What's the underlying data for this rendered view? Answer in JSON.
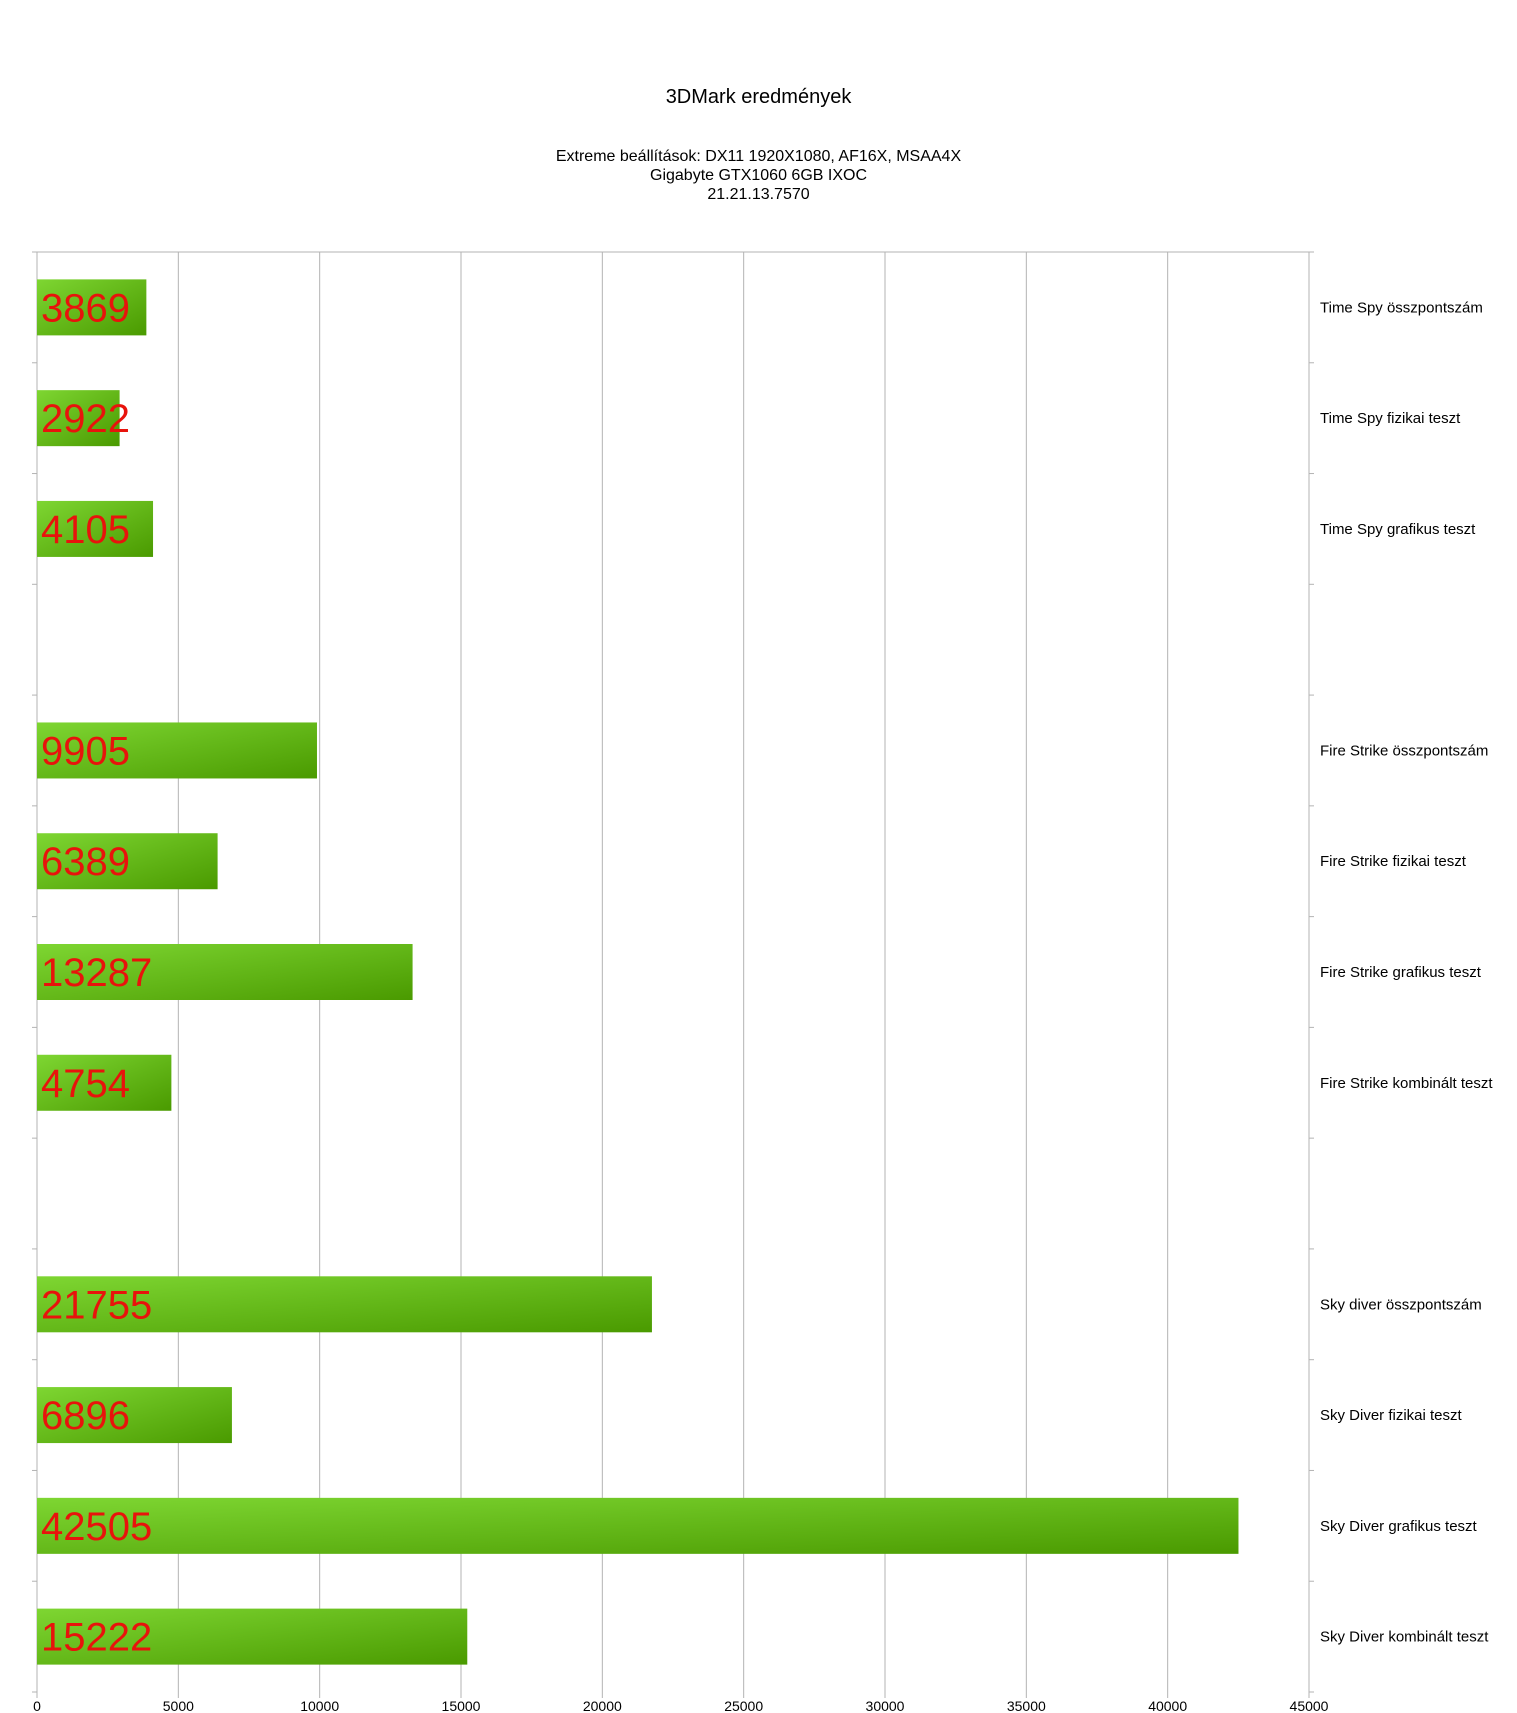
{
  "chart_data": {
    "type": "bar",
    "orientation": "horizontal",
    "title": "3DMark eredmények",
    "subtitle": [
      "Extreme beállítások: DX11 1920X1080, AF16X, MSAA4X",
      "Gigabyte GTX1060 6GB IXOC",
      "21.21.13.7570"
    ],
    "categories": [
      "Time Spy összpontszám",
      "Time Spy fizikai teszt",
      "Time Spy grafikus teszt",
      "",
      "Fire Strike összpontszám",
      "Fire Strike fizikai teszt",
      "Fire Strike grafikus teszt",
      "Fire Strike kombinált teszt",
      "",
      "Sky diver összpontszám",
      "Sky Diver fizikai teszt",
      "Sky Diver grafikus teszt",
      "Sky Diver kombinált teszt"
    ],
    "values": [
      3869,
      2922,
      4105,
      null,
      9905,
      6389,
      13287,
      4754,
      null,
      21755,
      6896,
      42505,
      15222
    ],
    "value_labels": [
      "3869",
      "2922",
      "4105",
      "",
      "9905",
      "6389",
      "13287",
      "4754",
      "",
      "21755",
      "6896",
      "42505",
      "15222"
    ],
    "xlim": [
      0,
      45000
    ],
    "xticks": [
      0,
      5000,
      10000,
      15000,
      20000,
      25000,
      30000,
      35000,
      40000,
      45000
    ],
    "grid": "vertical",
    "category_labels_side": "right",
    "colors": {
      "bar_light": "#7ed632",
      "bar_dark": "#4a9a00",
      "value_label": "#e8130c",
      "grid": "#b3b3b3"
    }
  }
}
